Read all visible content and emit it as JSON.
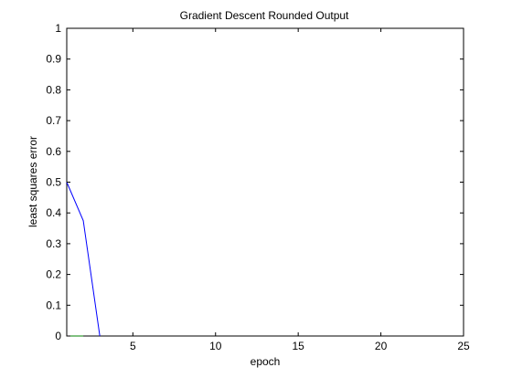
{
  "chart_data": {
    "type": "line",
    "title": "Gradient Descent Rounded Output",
    "xlabel": "epoch",
    "ylabel": "least squares error",
    "xlim": [
      1,
      25
    ],
    "ylim": [
      0,
      1
    ],
    "xticks": [
      5,
      10,
      15,
      20,
      25
    ],
    "xtick_labels": [
      "5",
      "10",
      "15",
      "20",
      "25"
    ],
    "yticks": [
      0,
      0.1,
      0.2,
      0.3,
      0.4,
      0.5,
      0.6,
      0.7,
      0.8,
      0.9,
      1
    ],
    "ytick_labels": [
      "0",
      "0.1",
      "0.2",
      "0.3",
      "0.4",
      "0.5",
      "0.6",
      "0.7",
      "0.8",
      "0.9",
      "1"
    ],
    "grid": false,
    "series": [
      {
        "color": "#0000ff",
        "x": [
          1,
          2,
          3
        ],
        "y": [
          0.5,
          0.375,
          0
        ]
      },
      {
        "color": "#008000",
        "x": [
          1,
          2
        ],
        "y": [
          0,
          0
        ]
      }
    ]
  }
}
